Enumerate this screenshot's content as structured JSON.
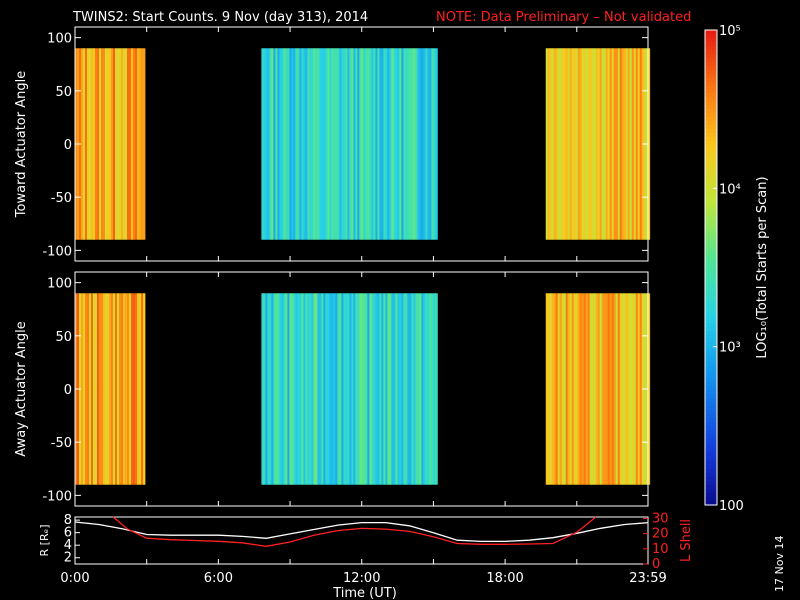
{
  "title": {
    "main": "TWINS2: Start Counts.  9 Nov (day 313), 2014",
    "note": "NOTE: Data Preliminary – Not validated",
    "note_color": "#ff2020"
  },
  "datestamp": "17 Nov 14",
  "chart_data": [
    {
      "type": "heatmap",
      "name": "toward-panel",
      "ylabel": "Toward Actuator Angle",
      "ylim": [
        -110,
        110
      ],
      "yticks": [
        "100",
        "50",
        "0",
        "-50",
        "-100"
      ],
      "ytick_values": [
        100,
        50,
        0,
        -50,
        -100
      ],
      "angle_range": [
        -90,
        90
      ],
      "data_intervals_hours": [
        [
          0.0,
          2.9
        ],
        [
          7.8,
          15.1
        ],
        [
          19.7,
          23.98
        ]
      ],
      "color_scale": "log",
      "typical_log_counts": [
        {
          "interval": 0,
          "log10": 4.4
        },
        {
          "interval": 1,
          "log10": 3.3
        },
        {
          "interval": 2,
          "log10": 4.3
        }
      ]
    },
    {
      "type": "heatmap",
      "name": "away-panel",
      "ylabel": "Away Actuator Angle",
      "ylim": [
        -110,
        110
      ],
      "yticks": [
        "100",
        "50",
        "0",
        "-50",
        "-100"
      ],
      "ytick_values": [
        100,
        50,
        0,
        -50,
        -100
      ],
      "angle_range": [
        -90,
        90
      ],
      "data_intervals_hours": [
        [
          0.0,
          2.9
        ],
        [
          7.8,
          15.1
        ],
        [
          19.7,
          23.98
        ]
      ],
      "color_scale": "log",
      "typical_log_counts": [
        {
          "interval": 0,
          "log10": 4.4
        },
        {
          "interval": 1,
          "log10": 3.3
        },
        {
          "interval": 2,
          "log10": 4.3
        }
      ]
    },
    {
      "type": "line",
      "name": "orbit-panel",
      "ylabel_left": "R [Rₑ]",
      "ylabel_right": "L Shell",
      "yticks_left": [
        "8",
        "6",
        "4",
        "2"
      ],
      "ytick_values_left": [
        8,
        6,
        4,
        2
      ],
      "ylim_left": [
        1,
        8.5
      ],
      "yticks_right": [
        "30",
        "20",
        "10",
        "0"
      ],
      "ytick_values_right": [
        30,
        20,
        10,
        0
      ],
      "ylim_right": [
        0,
        31
      ],
      "series": [
        {
          "name": "R",
          "color": "#ffffff",
          "axis": "left",
          "x": [
            0,
            1,
            2,
            3,
            4,
            5,
            6,
            7,
            8,
            9,
            10,
            11,
            12,
            13,
            14,
            15,
            16,
            17,
            18,
            19,
            20,
            21,
            22,
            23,
            24
          ],
          "y": [
            7.7,
            7.3,
            6.6,
            5.7,
            5.6,
            5.6,
            5.6,
            5.4,
            5.1,
            5.8,
            6.5,
            7.2,
            7.6,
            7.6,
            7.1,
            6.0,
            4.8,
            4.6,
            4.6,
            4.8,
            5.2,
            5.9,
            6.7,
            7.3,
            7.6
          ]
        },
        {
          "name": "L Shell",
          "color": "#ff2020",
          "axis": "right",
          "x": [
            1.6,
            2.2,
            3.0,
            4.0,
            5.0,
            6.0,
            7.0,
            8.0,
            9.0,
            10.0,
            11.0,
            12.0,
            13.0,
            14.0,
            15.0,
            16.0,
            17.0,
            18.0,
            19.0,
            20.0,
            21.0,
            21.8
          ],
          "y": [
            31,
            23,
            17,
            16,
            15.5,
            15,
            14,
            11.7,
            14.5,
            19,
            22,
            23.5,
            23,
            21.5,
            18,
            13.5,
            13,
            13,
            13.2,
            13.5,
            21,
            31
          ]
        }
      ],
      "x_range": [
        0,
        23.98
      ]
    }
  ],
  "x_axis": {
    "label": "Time (UT)",
    "tick_labels": [
      "0:00",
      "6:00",
      "12:00",
      "18:00",
      "23:59"
    ],
    "tick_hours": [
      0,
      6,
      12,
      18,
      23.98
    ]
  },
  "colorbar": {
    "label": "LOG₁₀(Total Starts per Scan)",
    "ticks": [
      {
        "text": "10⁵",
        "value": 100000
      },
      {
        "text": "10⁴",
        "value": 10000
      },
      {
        "text": "10³",
        "value": 1000
      },
      {
        "text": "100",
        "value": 100
      }
    ],
    "range": [
      100,
      100000
    ]
  }
}
